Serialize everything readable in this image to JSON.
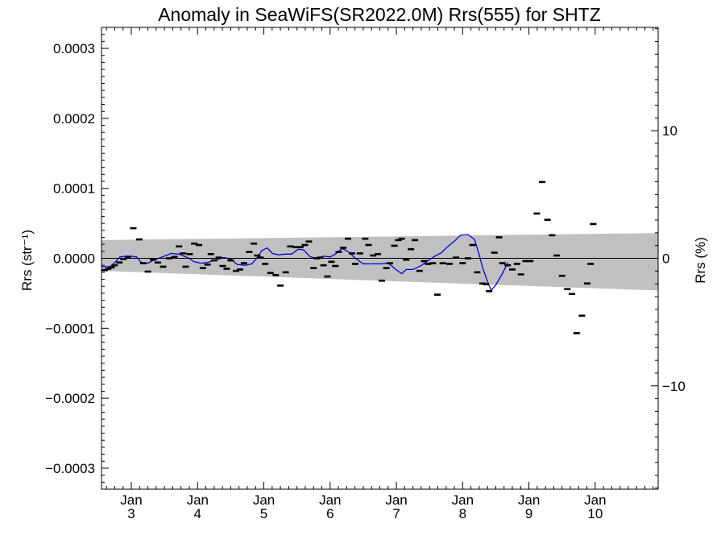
{
  "chart_data": {
    "type": "scatter",
    "title": "Anomaly in SeaWiFS(SR2022.0M) Rrs(555) for SHTZ",
    "xlabel": "",
    "ylabel": "Rrs (str⁻¹)",
    "y2label": "Rrs (%)",
    "ylim": [
      -0.00033,
      0.00033
    ],
    "y2lim": [
      -18.1,
      18.1
    ],
    "xlim": [
      2.55,
      10.95
    ],
    "grid": false,
    "legend": "none",
    "x_ticks": [
      {
        "x": 3,
        "line1": "Jan",
        "line2": "3"
      },
      {
        "x": 4,
        "line1": "Jan",
        "line2": "4"
      },
      {
        "x": 5,
        "line1": "Jan",
        "line2": "5"
      },
      {
        "x": 6,
        "line1": "Jan",
        "line2": "6"
      },
      {
        "x": 7,
        "line1": "Jan",
        "line2": "7"
      },
      {
        "x": 8,
        "line1": "Jan",
        "line2": "8"
      },
      {
        "x": 9,
        "line1": "Jan",
        "line2": "9"
      },
      {
        "x": 10,
        "line1": "Jan",
        "line2": "10"
      }
    ],
    "y_ticks": [
      {
        "v": 0.0003,
        "label": "0.0003"
      },
      {
        "v": 0.0002,
        "label": "0.0002"
      },
      {
        "v": 0.0001,
        "label": "0.0001"
      },
      {
        "v": 0.0,
        "label": "0.0000"
      },
      {
        "v": -0.0001,
        "label": "−0.0001"
      },
      {
        "v": -0.0002,
        "label": "−0.0002"
      },
      {
        "v": -0.0003,
        "label": "−0.0003"
      }
    ],
    "y2_ticks": [
      {
        "v": 10,
        "label": "10"
      },
      {
        "v": 0,
        "label": "0"
      },
      {
        "v": -10,
        "label": "−10"
      }
    ],
    "colors": {
      "band": "#c0c0c0",
      "smooth_line": "#0000dd",
      "points": "#000000",
      "zero_line": "#000000"
    },
    "band": {
      "x": [
        2.55,
        10.95
      ],
      "upper": [
        2.6e-05,
        3.6e-05
      ],
      "lower": [
        -1.8e-05,
        -4.6e-05
      ]
    },
    "points": [
      [
        2.6,
        -1.7e-05
      ],
      [
        2.65,
        -1.5e-05
      ],
      [
        2.7,
        -1.3e-05
      ],
      [
        2.75,
        -1e-05
      ],
      [
        2.82,
        -6e-06
      ],
      [
        2.88,
        -1e-06
      ],
      [
        2.95,
        1e-06
      ],
      [
        3.03,
        4.3e-05
      ],
      [
        3.12,
        2.7e-05
      ],
      [
        3.18,
        -7e-06
      ],
      [
        3.25,
        -1.9e-05
      ],
      [
        3.33,
        -2e-06
      ],
      [
        3.4,
        -6e-06
      ],
      [
        3.48,
        -1.2e-05
      ],
      [
        3.57,
        0.0
      ],
      [
        3.65,
        2e-06
      ],
      [
        3.72,
        1.7e-05
      ],
      [
        3.78,
        7e-06
      ],
      [
        3.82,
        -1.2e-05
      ],
      [
        3.88,
        6e-06
      ],
      [
        3.95,
        2.1e-05
      ],
      [
        4.02,
        1.9e-05
      ],
      [
        4.08,
        -1.4e-05
      ],
      [
        4.15,
        -9e-06
      ],
      [
        4.2,
        6e-06
      ],
      [
        4.25,
        -3e-06
      ],
      [
        4.32,
        1e-06
      ],
      [
        4.38,
        -1.1e-05
      ],
      [
        4.44,
        -1.5e-05
      ],
      [
        4.5,
        -3e-06
      ],
      [
        4.58,
        -1.8e-05
      ],
      [
        4.64,
        -1.6e-05
      ],
      [
        4.7,
        -7e-06
      ],
      [
        4.78,
        9e-06
      ],
      [
        4.85,
        2.1e-05
      ],
      [
        4.9,
        4e-06
      ],
      [
        4.95,
        1e-06
      ],
      [
        5.02,
        -8e-06
      ],
      [
        5.1,
        -2.1e-05
      ],
      [
        5.18,
        -2.4e-05
      ],
      [
        5.25,
        -3.9e-05
      ],
      [
        5.33,
        -2e-05
      ],
      [
        5.4,
        1.7e-05
      ],
      [
        5.48,
        1.6e-05
      ],
      [
        5.55,
        1.6e-05
      ],
      [
        5.62,
        1.9e-05
      ],
      [
        5.68,
        2.4e-05
      ],
      [
        5.75,
        -1.4e-05
      ],
      [
        5.8,
        0.0
      ],
      [
        5.85,
        1e-06
      ],
      [
        5.9,
        -1e-05
      ],
      [
        5.96,
        -2.6e-05
      ],
      [
        6.02,
        -5e-06
      ],
      [
        6.08,
        -1.1e-05
      ],
      [
        6.13,
        9e-06
      ],
      [
        6.2,
        1.5e-05
      ],
      [
        6.27,
        2.8e-05
      ],
      [
        6.33,
        7e-06
      ],
      [
        6.38,
        -8e-06
      ],
      [
        6.45,
        7e-06
      ],
      [
        6.53,
        2.8e-05
      ],
      [
        6.58,
        1.9e-05
      ],
      [
        6.65,
        4e-06
      ],
      [
        6.72,
        6e-06
      ],
      [
        6.78,
        -3.2e-05
      ],
      [
        6.85,
        -1.4e-05
      ],
      [
        6.9,
        -7e-06
      ],
      [
        6.97,
        1.8e-05
      ],
      [
        7.03,
        2.6e-05
      ],
      [
        7.08,
        2.8e-05
      ],
      [
        7.15,
        -2e-06
      ],
      [
        7.22,
        1.3e-05
      ],
      [
        7.28,
        2.6e-05
      ],
      [
        7.35,
        -1.8e-05
      ],
      [
        7.42,
        -4e-06
      ],
      [
        7.48,
        -8e-06
      ],
      [
        7.55,
        -7e-06
      ],
      [
        7.62,
        -5.2e-05
      ],
      [
        7.7,
        -7e-06
      ],
      [
        7.8,
        -8e-06
      ],
      [
        7.9,
        1e-06
      ],
      [
        8.0,
        -7e-06
      ],
      [
        8.08,
        0.0
      ],
      [
        8.15,
        1.9e-05
      ],
      [
        8.22,
        -2e-05
      ],
      [
        8.3,
        -3.6e-05
      ],
      [
        8.35,
        -3.7e-05
      ],
      [
        8.4,
        -4.7e-05
      ],
      [
        8.48,
        8e-06
      ],
      [
        8.55,
        3e-05
      ],
      [
        8.6,
        -7e-06
      ],
      [
        8.68,
        -1e-05
      ],
      [
        8.75,
        -1.6e-05
      ],
      [
        8.82,
        -8e-06
      ],
      [
        8.88,
        -2.3e-05
      ],
      [
        8.95,
        -4e-06
      ],
      [
        9.02,
        -4e-06
      ],
      [
        9.12,
        6.4e-05
      ],
      [
        9.2,
        0.000109
      ],
      [
        9.28,
        5.5e-05
      ],
      [
        9.35,
        3.3e-05
      ],
      [
        9.42,
        4e-06
      ],
      [
        9.5,
        -2.5e-05
      ],
      [
        9.58,
        -4.4e-05
      ],
      [
        9.65,
        -5.1e-05
      ],
      [
        9.72,
        -0.000107
      ],
      [
        9.8,
        -8.2e-05
      ],
      [
        9.88,
        -3.6e-05
      ],
      [
        9.93,
        -8e-06
      ],
      [
        9.97,
        4.9e-05
      ]
    ],
    "smooth_line": [
      [
        2.55,
        -1.2e-05
      ],
      [
        2.68,
        -1.2e-05
      ],
      [
        2.75,
        -6e-06
      ],
      [
        2.83,
        2e-06
      ],
      [
        2.92,
        3e-06
      ],
      [
        3.0,
        3e-06
      ],
      [
        3.08,
        2e-06
      ],
      [
        3.15,
        -6e-06
      ],
      [
        3.25,
        -7e-06
      ],
      [
        3.35,
        -2e-06
      ],
      [
        3.5,
        3e-06
      ],
      [
        3.6,
        7e-06
      ],
      [
        3.72,
        6e-06
      ],
      [
        3.85,
        1e-06
      ],
      [
        3.95,
        -5e-06
      ],
      [
        4.05,
        -7e-06
      ],
      [
        4.15,
        -6e-06
      ],
      [
        4.28,
        -2e-06
      ],
      [
        4.4,
        1e-06
      ],
      [
        4.5,
        -1e-06
      ],
      [
        4.6,
        -9e-06
      ],
      [
        4.72,
        -1e-05
      ],
      [
        4.82,
        -8e-06
      ],
      [
        4.9,
        1e-06
      ],
      [
        4.97,
        1.1e-05
      ],
      [
        5.05,
        1.5e-05
      ],
      [
        5.13,
        7e-06
      ],
      [
        5.22,
        5e-06
      ],
      [
        5.32,
        6e-06
      ],
      [
        5.42,
        6e-06
      ],
      [
        5.52,
        1.3e-05
      ],
      [
        5.6,
        1.2e-05
      ],
      [
        5.7,
        2e-06
      ],
      [
        5.8,
        0.0
      ],
      [
        5.9,
        3e-06
      ],
      [
        6.0,
        2e-06
      ],
      [
        6.08,
        6e-06
      ],
      [
        6.18,
        1.4e-05
      ],
      [
        6.28,
        9e-06
      ],
      [
        6.38,
        0.0
      ],
      [
        6.5,
        -8e-06
      ],
      [
        6.62,
        -8e-06
      ],
      [
        6.75,
        -8e-06
      ],
      [
        6.88,
        -7e-06
      ],
      [
        6.98,
        -1.5e-05
      ],
      [
        7.08,
        -2.2e-05
      ],
      [
        7.15,
        -1.6e-05
      ],
      [
        7.25,
        -1.6e-05
      ],
      [
        7.38,
        -1e-05
      ],
      [
        7.48,
        -3e-06
      ],
      [
        7.58,
        3e-06
      ],
      [
        7.68,
        8e-06
      ],
      [
        7.78,
        1.7e-05
      ],
      [
        7.88,
        2.5e-05
      ],
      [
        7.97,
        3.3e-05
      ],
      [
        8.08,
        3.4e-05
      ],
      [
        8.18,
        2.7e-05
      ],
      [
        8.25,
        5e-06
      ],
      [
        8.3,
        -1.3e-05
      ],
      [
        8.37,
        -3.2e-05
      ],
      [
        8.43,
        -4.6e-05
      ],
      [
        8.5,
        -3.8e-05
      ],
      [
        8.6,
        -2.2e-05
      ],
      [
        8.68,
        -6e-06
      ]
    ]
  }
}
